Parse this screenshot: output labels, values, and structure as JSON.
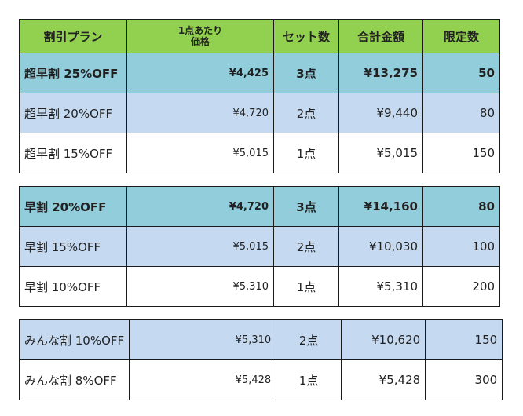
{
  "header": {
    "plan": "割引プラン",
    "unit_price_line1": "1点あたり",
    "unit_price_line2": "価格",
    "sets": "セット数",
    "total": "合計金額",
    "limit": "限定数"
  },
  "groups": [
    {
      "rows": [
        {
          "plan": "超早割 25%OFF",
          "unit_price": "¥4,425",
          "sets": "3点",
          "total": "¥13,275",
          "limit": "50"
        },
        {
          "plan": "超早割 20%OFF",
          "unit_price": "¥4,720",
          "sets": "2点",
          "total": "¥9,440",
          "limit": "80"
        },
        {
          "plan": "超早割 15%OFF",
          "unit_price": "¥5,015",
          "sets": "1点",
          "total": "¥5,015",
          "limit": "150"
        }
      ]
    },
    {
      "rows": [
        {
          "plan": "早割 20%OFF",
          "unit_price": "¥4,720",
          "sets": "3点",
          "total": "¥14,160",
          "limit": "80"
        },
        {
          "plan": "早割 15%OFF",
          "unit_price": "¥5,015",
          "sets": "2点",
          "total": "¥10,030",
          "limit": "100"
        },
        {
          "plan": "早割 10%OFF",
          "unit_price": "¥5,310",
          "sets": "1点",
          "total": "¥5,310",
          "limit": "200"
        }
      ]
    },
    {
      "rows": [
        {
          "plan": "みんな割 10%OFF",
          "unit_price": "¥5,310",
          "sets": "2点",
          "total": "¥10,620",
          "limit": "150"
        },
        {
          "plan": "みんな割 8%OFF",
          "unit_price": "¥5,428",
          "sets": "1点",
          "total": "¥5,428",
          "limit": "300"
        }
      ]
    }
  ],
  "colors": {
    "header_bg": "#92d050",
    "highlight_row_bg": "#92cddc",
    "alt_row_bg": "#c5d9f1",
    "plain_row_bg": "#ffffff",
    "border": "#1a1a1a"
  }
}
